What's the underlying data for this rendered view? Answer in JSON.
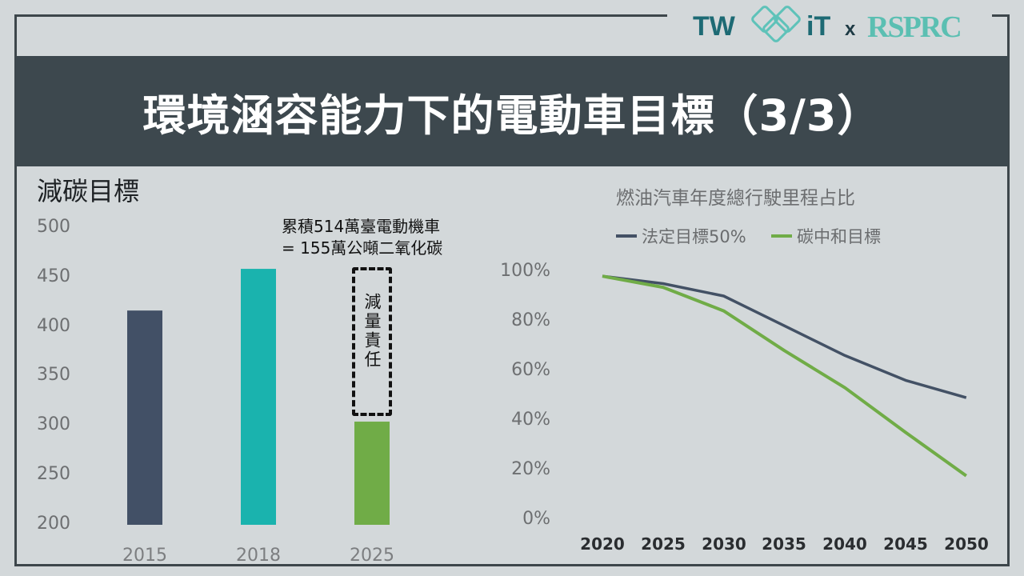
{
  "header": {
    "title": "環境涵容能力下的電動車目標（3/3）",
    "logo_left": "TW",
    "logo_mid": "iT",
    "logo_x": "x",
    "logo_right": "RSPRC"
  },
  "colors": {
    "title_band": "#3d484e",
    "bar_2015": "#425066",
    "bar_2018": "#1ab3ae",
    "bar_2025": "#70ac47",
    "line_legal": "#435165",
    "line_carbon": "#70ac47"
  },
  "chart_data": [
    {
      "type": "bar",
      "title": "減碳目標",
      "categories": [
        "2015",
        "2018",
        "2025"
      ],
      "values": [
        416,
        458,
        304
      ],
      "ylim": [
        200,
        500
      ],
      "yticks": [
        "500",
        "450",
        "400",
        "350",
        "300",
        "250",
        "200"
      ],
      "grid": false,
      "annotation": {
        "line1": "累積514萬臺電動機車",
        "line2": "= 155萬公噸二氧化碳",
        "box_label": "減量責任"
      }
    },
    {
      "type": "line",
      "title": "燃油汽車年度總行駛里程占比",
      "x": [
        "2020",
        "2025",
        "2030",
        "2035",
        "2040",
        "2045",
        "2050"
      ],
      "ylim": [
        0,
        100
      ],
      "yticks": [
        "100%",
        "80%",
        "60%",
        "40%",
        "20%",
        "0%"
      ],
      "grid": false,
      "legend_position": "top",
      "series": [
        {
          "name": "法定目標50%",
          "values": [
            98,
            95,
            90,
            78,
            66,
            56,
            49
          ]
        },
        {
          "name": "碳中和目標",
          "values": [
            98,
            93.5,
            84,
            68,
            53,
            35,
            17.5
          ]
        }
      ]
    }
  ]
}
